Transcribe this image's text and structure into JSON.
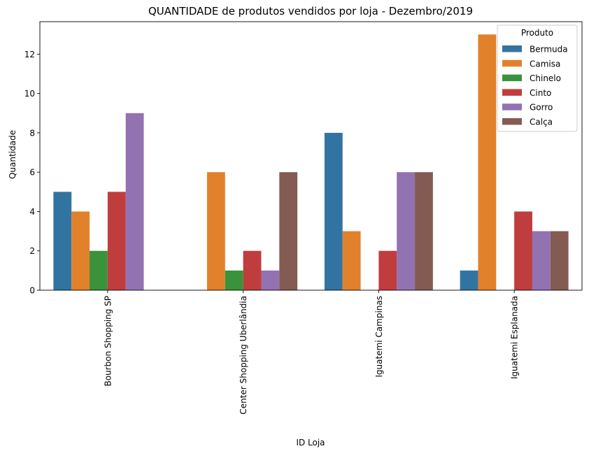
{
  "chart_data": {
    "type": "bar",
    "title": "QUANTIDADE de produtos vendidos por loja - Dezembro/2019",
    "xlabel": "ID Loja",
    "ylabel": "Quantidade",
    "categories": [
      "Bourbon Shopping SP",
      "Center Shopping Uberlândia",
      "Iguatemi Campinas",
      "Iguatemi Esplanada"
    ],
    "ylim": [
      0,
      13.65
    ],
    "yticks": [
      0,
      2,
      4,
      6,
      8,
      10,
      12
    ],
    "grid": false,
    "legend": {
      "title": "Produto",
      "placement": "top-right"
    },
    "series": [
      {
        "name": "Bermuda",
        "color": "#3274a1",
        "values": [
          5,
          0,
          8,
          1
        ]
      },
      {
        "name": "Camisa",
        "color": "#e1812c",
        "values": [
          4,
          6,
          3,
          13
        ]
      },
      {
        "name": "Chinelo",
        "color": "#3a923a",
        "values": [
          2,
          1,
          0,
          0
        ]
      },
      {
        "name": "Cinto",
        "color": "#c03d3e",
        "values": [
          5,
          2,
          2,
          4
        ]
      },
      {
        "name": "Gorro",
        "color": "#9372b2",
        "values": [
          9,
          1,
          6,
          3
        ]
      },
      {
        "name": "Calça",
        "color": "#845b53",
        "values": [
          0,
          6,
          6,
          3
        ]
      }
    ]
  }
}
